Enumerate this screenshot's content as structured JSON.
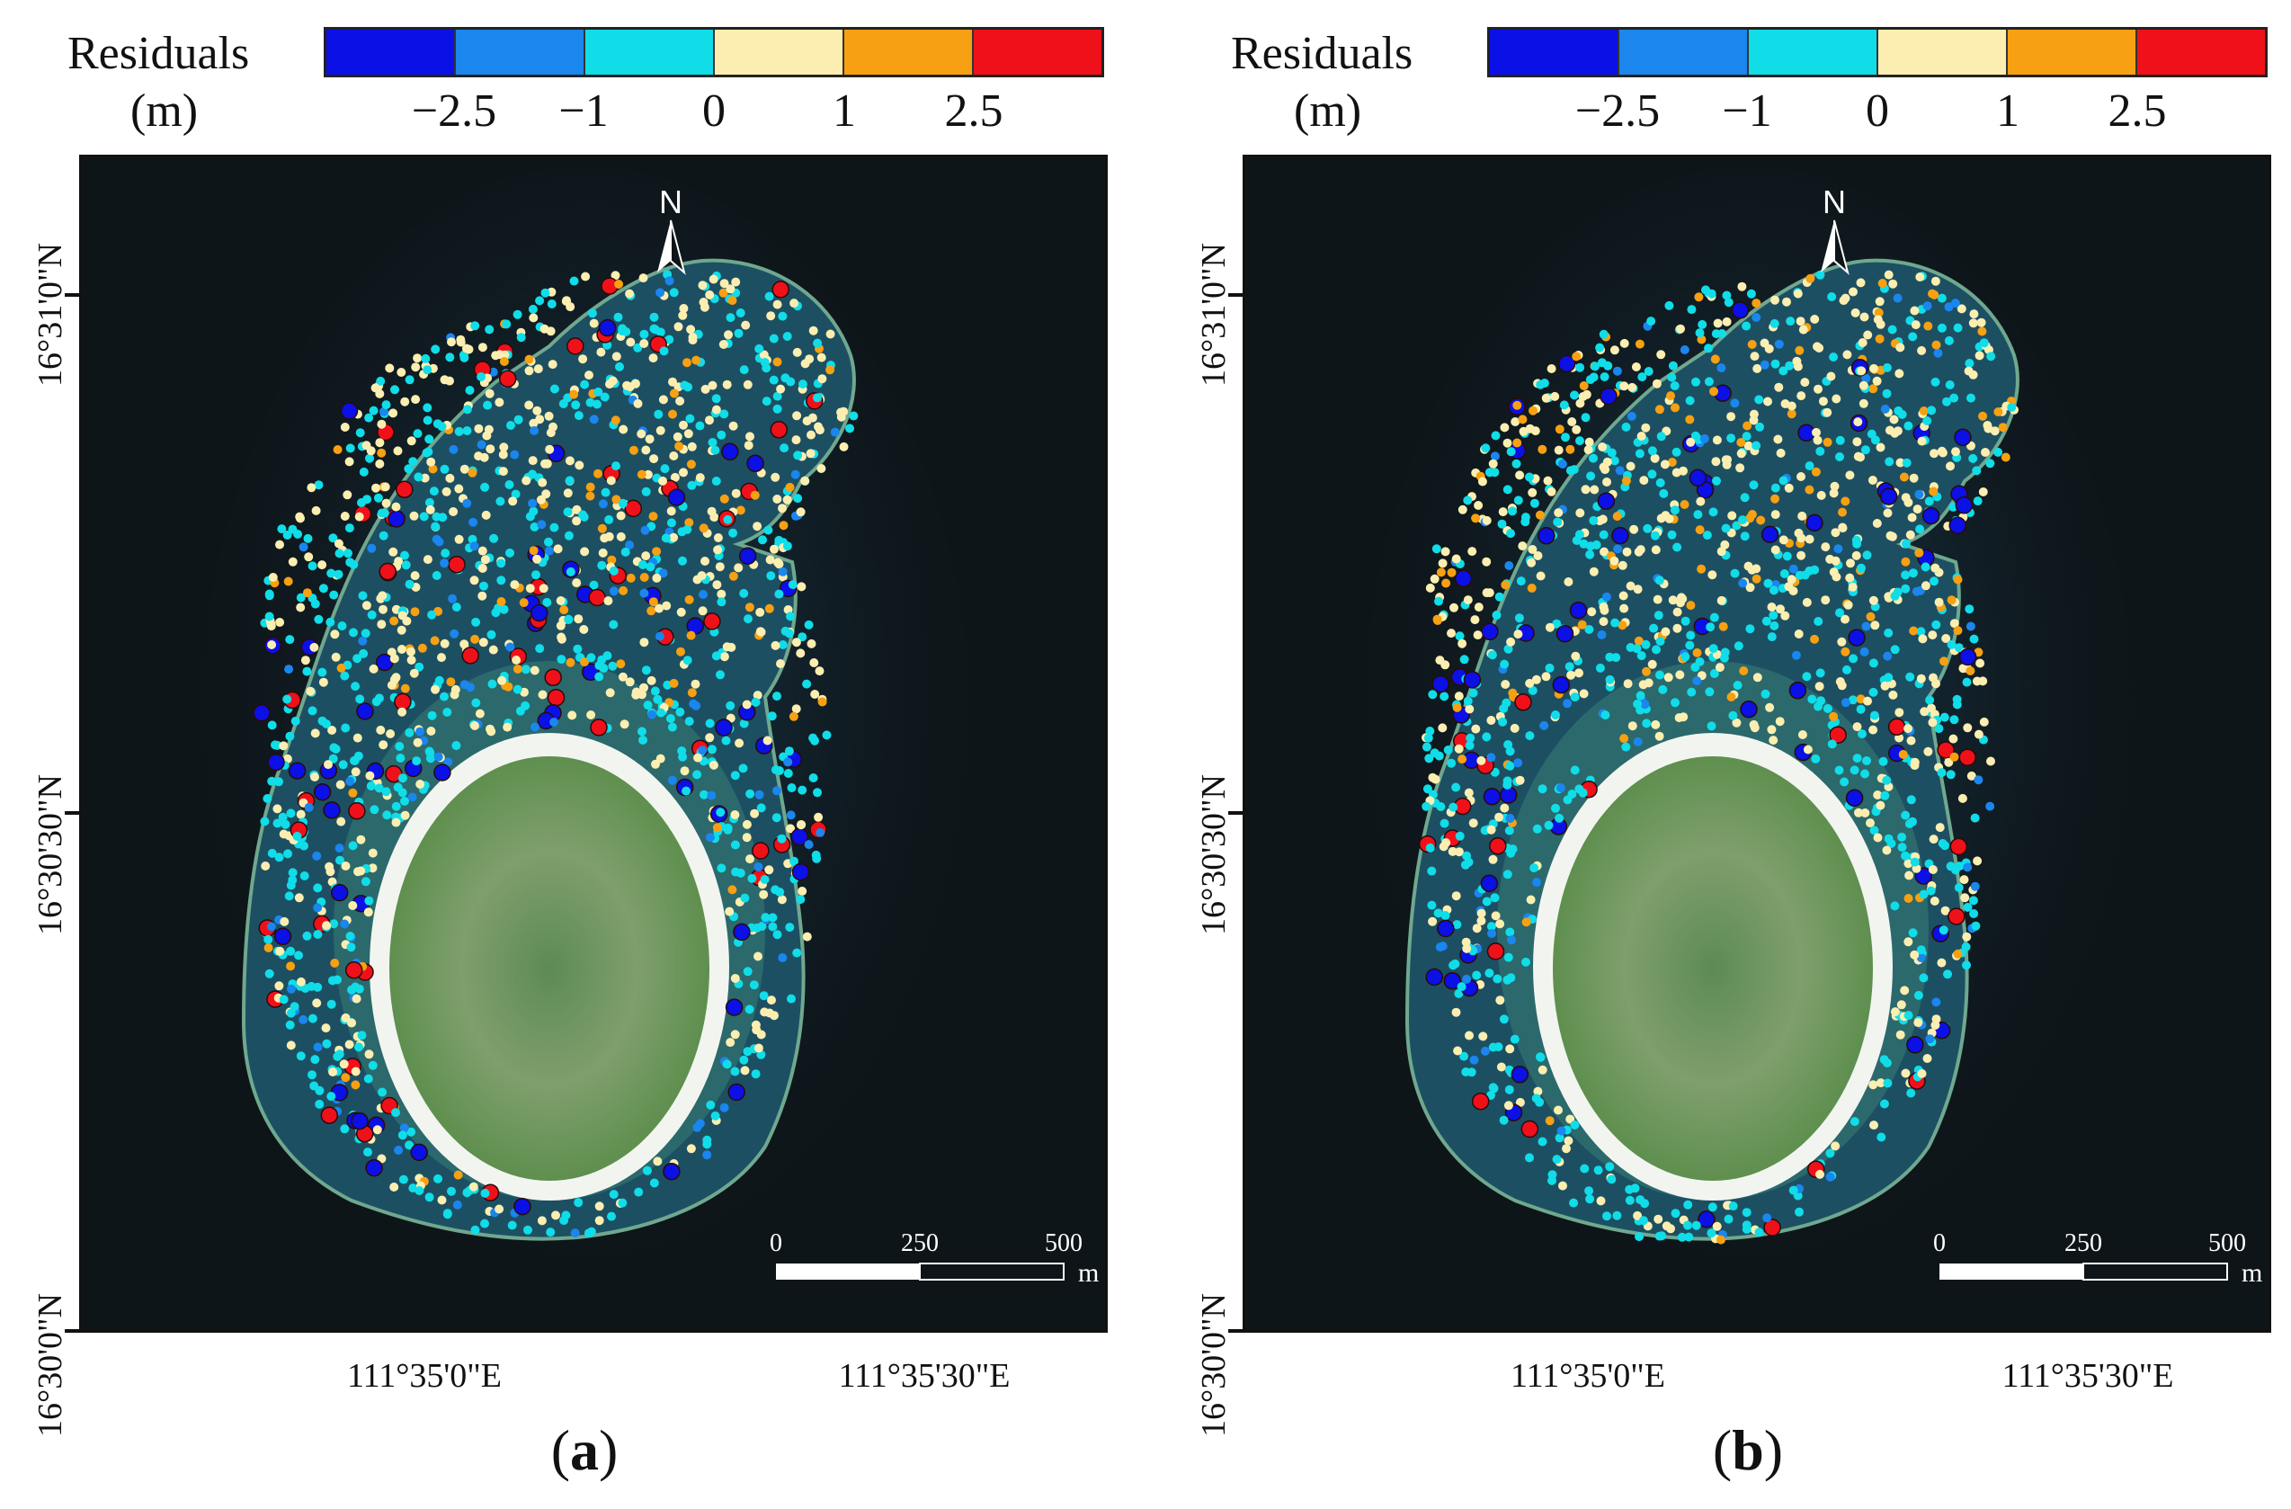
{
  "legend": {
    "title": "Residuals",
    "unit": "(m)",
    "colors": [
      "#0a10e6",
      "#1a86ee",
      "#10dde8",
      "#fbeeb0",
      "#f7a011",
      "#f0101a"
    ],
    "tick_labels": [
      "−2.5",
      "−1",
      "0",
      "1",
      "2.5"
    ]
  },
  "north_label": "N",
  "scalebar": {
    "labels": [
      "0",
      "250",
      "500"
    ],
    "unit": "m"
  },
  "lat_labels": [
    "16°31'0\"N",
    "16°30'30\"N",
    "16°30'0\"N"
  ],
  "lon_labels": [
    "111°35'0\"E",
    "111°35'30\"E"
  ],
  "panels": [
    {
      "open": "(",
      "letter": "a",
      "close": ")"
    },
    {
      "open": "(",
      "letter": "b",
      "close": ")"
    }
  ]
}
